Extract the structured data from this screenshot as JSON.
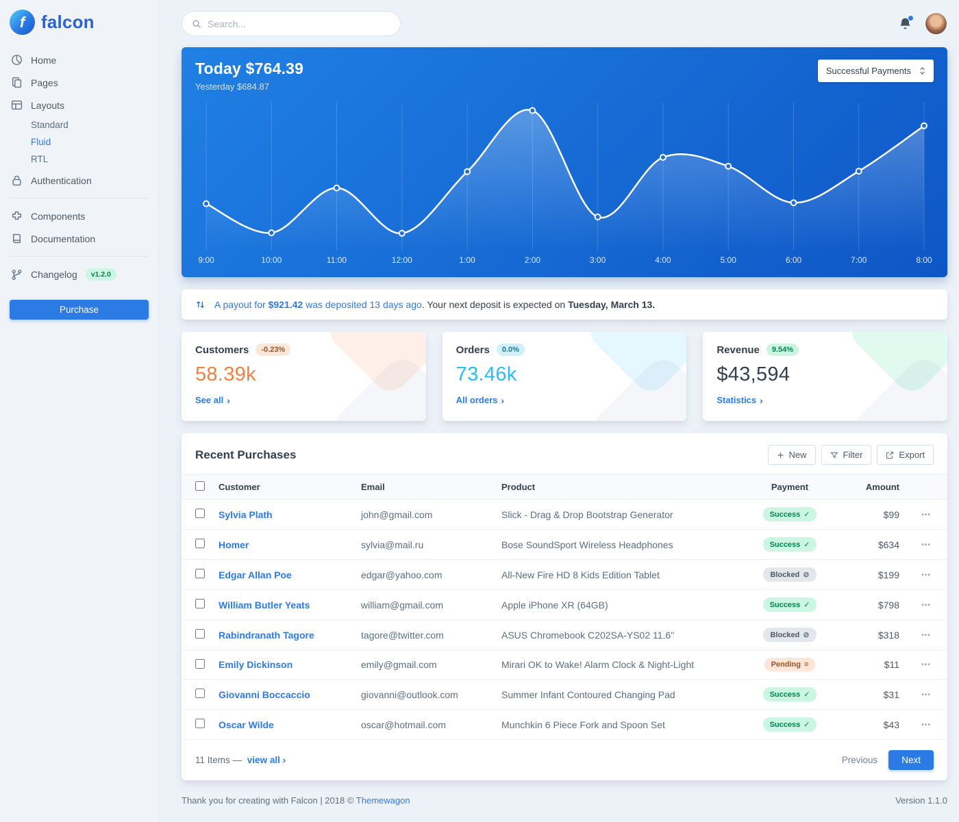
{
  "brand": {
    "name": "falcon"
  },
  "topbar": {
    "search_placeholder": "Search..."
  },
  "sidebar": {
    "items": [
      {
        "label": "Home",
        "icon": "chart-pie-icon"
      },
      {
        "label": "Pages",
        "icon": "copy-icon"
      },
      {
        "label": "Layouts",
        "icon": "layout-grid-icon",
        "children": [
          "Standard",
          "Fluid",
          "RTL"
        ],
        "active_child": "Fluid"
      },
      {
        "label": "Authentication",
        "icon": "lock-icon"
      },
      {
        "label": "Components",
        "icon": "puzzle-icon"
      },
      {
        "label": "Documentation",
        "icon": "book-icon"
      },
      {
        "label": "Changelog",
        "icon": "code-branch-icon",
        "badge": "v1.2.0"
      }
    ],
    "purchase_label": "Purchase"
  },
  "hero": {
    "today_label": "Today",
    "today_value": "$764.39",
    "yesterday_label": "Yesterday",
    "yesterday_value": "$684.87",
    "dropdown_value": "Successful Payments"
  },
  "chart_data": {
    "type": "line",
    "title": "Successful Payments (today, hourly)",
    "x": [
      "9:00",
      "10:00",
      "11:00",
      "12:00",
      "1:00",
      "2:00",
      "3:00",
      "4:00",
      "5:00",
      "6:00",
      "7:00",
      "8:00"
    ],
    "values": [
      95,
      36,
      127,
      35,
      160,
      284,
      68,
      189,
      171,
      97,
      161,
      253
    ],
    "ylim": [
      0,
      300
    ],
    "grid": "vertical",
    "legend_position": "none",
    "line_color": "#ffffff",
    "point_fill": "#1e6fd9"
  },
  "payout": {
    "link_prefix": "A payout for ",
    "amount": "$921.42",
    "link_suffix": " was deposited 13 days ago",
    "mid_text": ". Your next deposit is expected on ",
    "date": "Tuesday, March 13."
  },
  "stat_cards": [
    {
      "title": "Customers",
      "badge": "-0.23%",
      "value": "58.39k",
      "link": "See all",
      "accent": "#f5803e"
    },
    {
      "title": "Orders",
      "badge": "0.0%",
      "value": "73.46k",
      "link": "All orders",
      "accent": "#27bcfd"
    },
    {
      "title": "Revenue",
      "badge": "9.54%",
      "value": "$43,594",
      "link": "Statistics",
      "accent": "#00d27a"
    }
  ],
  "purchases": {
    "title": "Recent Purchases",
    "actions": {
      "new": "New",
      "filter": "Filter",
      "export": "Export"
    },
    "columns": [
      "Customer",
      "Email",
      "Product",
      "Payment",
      "Amount"
    ],
    "rows": [
      {
        "customer": "Sylvia Plath",
        "email": "john@gmail.com",
        "product": "Slick - Drag & Drop Bootstrap Generator",
        "payment": "Success",
        "amount": "$99"
      },
      {
        "customer": "Homer",
        "email": "sylvia@mail.ru",
        "product": "Bose SoundSport Wireless Headphones",
        "payment": "Success",
        "amount": "$634"
      },
      {
        "customer": "Edgar Allan Poe",
        "email": "edgar@yahoo.com",
        "product": "All-New Fire HD 8 Kids Edition Tablet",
        "payment": "Blocked",
        "amount": "$199"
      },
      {
        "customer": "William Butler Yeats",
        "email": "william@gmail.com",
        "product": "Apple iPhone XR (64GB)",
        "payment": "Success",
        "amount": "$798"
      },
      {
        "customer": "Rabindranath Tagore",
        "email": "tagore@twitter.com",
        "product": "ASUS Chromebook C202SA-YS02 11.6\"",
        "payment": "Blocked",
        "amount": "$318"
      },
      {
        "customer": "Emily Dickinson",
        "email": "emily@gmail.com",
        "product": "Mirari OK to Wake! Alarm Clock & Night-Light",
        "payment": "Pending",
        "amount": "$11"
      },
      {
        "customer": "Giovanni Boccaccio",
        "email": "giovanni@outlook.com",
        "product": "Summer Infant Contoured Changing Pad",
        "payment": "Success",
        "amount": "$31"
      },
      {
        "customer": "Oscar Wilde",
        "email": "oscar@hotmail.com",
        "product": "Munchkin 6 Piece Fork and Spoon Set",
        "payment": "Success",
        "amount": "$43"
      }
    ],
    "footer": {
      "items_label": "11 Items —",
      "view_all": "view all",
      "previous": "Previous",
      "next": "Next"
    }
  },
  "status_icons": {
    "Success": "✓",
    "Blocked": "⊘",
    "Pending": "≡"
  },
  "icons": {
    "chevron_right": "›",
    "row_actions": "•••"
  },
  "page_footer": {
    "thanks": "Thank you for creating with Falcon | 2018 © ",
    "brand": "Themewagon",
    "version": "Version 1.1.0"
  },
  "colors": {
    "primary": "#2c7be5",
    "success": "#00d27a",
    "info": "#27bcfd",
    "warning": "#f5803e"
  }
}
